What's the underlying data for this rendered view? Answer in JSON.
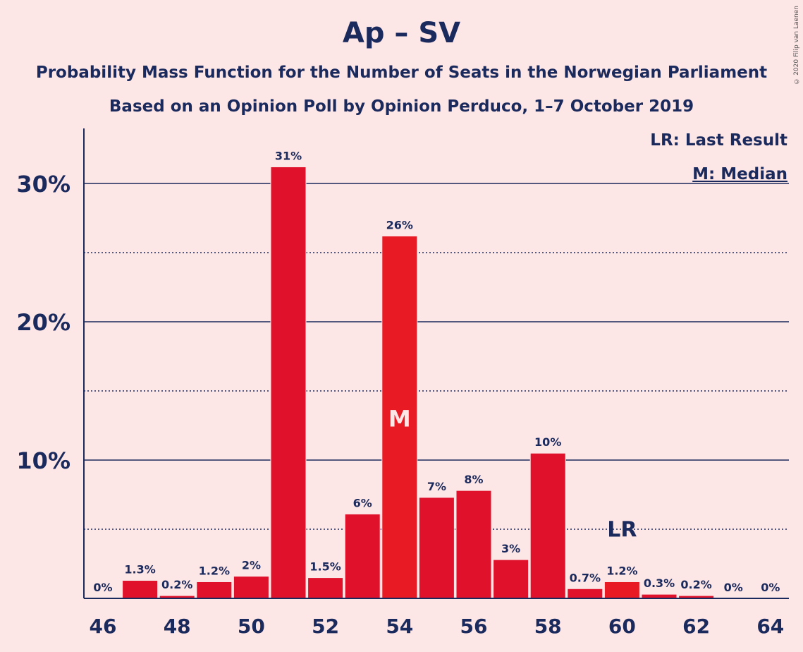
{
  "title": "Ap – SV",
  "subtitle1": "Probability Mass Function for the Number of Seats in the Norwegian Parliament",
  "subtitle2": "Based on an Opinion Poll by Opinion Perduco, 1–7 October 2019",
  "copyright": "© 2020 Filip van Laenen",
  "legend": {
    "lr": "LR: Last Result",
    "m": "M: Median"
  },
  "colors": {
    "background": "#fde6e6",
    "bar": "#e0112a",
    "bar_alt": "#e81a24",
    "axis": "#1b2a5c"
  },
  "chart_data": {
    "type": "bar",
    "title": "Ap – SV",
    "xlabel": "",
    "ylabel": "",
    "categories": [
      46,
      47,
      48,
      49,
      50,
      51,
      52,
      53,
      54,
      55,
      56,
      57,
      58,
      59,
      60,
      61,
      62,
      63,
      64
    ],
    "values": [
      0,
      1.3,
      0.2,
      1.2,
      1.6,
      31.2,
      1.5,
      6.1,
      26.2,
      7.3,
      7.8,
      2.8,
      10.5,
      0.7,
      1.2,
      0.3,
      0.2,
      0,
      0
    ],
    "data_labels": [
      "0%",
      "1.3%",
      "0.2%",
      "1.2%",
      "2%",
      "31%",
      "1.5%",
      "6%",
      "26%",
      "7%",
      "8%",
      "3%",
      "10%",
      "0.7%",
      "1.2%",
      "0.3%",
      "0.2%",
      "0%",
      "0%"
    ],
    "x_tick_labels": [
      "46",
      "48",
      "50",
      "52",
      "54",
      "56",
      "58",
      "60",
      "62",
      "64"
    ],
    "y_tick_labels": [
      "10%",
      "20%",
      "30%"
    ],
    "ylim": [
      0,
      34
    ],
    "solid_gridlines": [
      10,
      20,
      30
    ],
    "dotted_gridlines": [
      5,
      15,
      25
    ],
    "median": {
      "seats": 54,
      "label": "M"
    },
    "last_result": {
      "seats": 60,
      "label": "LR"
    }
  }
}
